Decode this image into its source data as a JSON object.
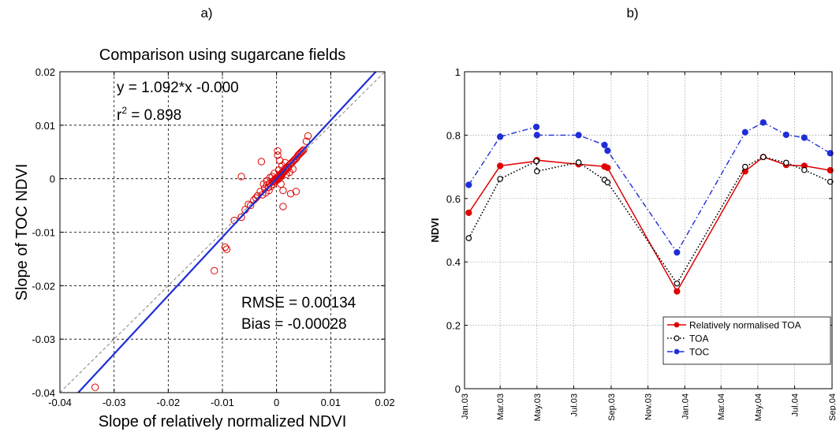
{
  "chart_data": [
    {
      "type": "scatter",
      "panel_label": "a)",
      "title": "Comparison using sugarcane fields",
      "xlabel": "Slope of relatively normalized NDVI",
      "ylabel": "Slope of TOC NDVI",
      "xlim": [
        -0.04,
        0.02
      ],
      "ylim": [
        -0.04,
        0.02
      ],
      "xticks": [
        -0.04,
        -0.03,
        -0.02,
        -0.01,
        0,
        0.01,
        0.02
      ],
      "yticks": [
        -0.04,
        -0.03,
        -0.02,
        -0.01,
        0,
        0.01,
        0.02
      ],
      "xtick_labels": [
        "-0.04",
        "-0.03",
        "-0.02",
        "-0.01",
        "0",
        "0.01",
        "0.02"
      ],
      "ytick_labels": [
        "-0.04",
        "-0.03",
        "-0.02",
        "-0.01",
        "0",
        "0.01",
        "0.02"
      ],
      "grid": true,
      "equation": "y = 1.092*x -0.000",
      "r2_prefix": "r",
      "r2_sup": "2",
      "r2_value": " = 0.898",
      "rmse_text": "RMSE = 0.00134",
      "bias_text": "Bias = -0.00028",
      "fit": {
        "slope": 1.092,
        "intercept": 0.0
      },
      "colors": {
        "points": "#e00000",
        "fit": "#1f2ed6",
        "identity": "#808080"
      },
      "points": [
        [
          -0.0335,
          -0.039
        ],
        [
          -0.0115,
          -0.0172
        ],
        [
          -0.0095,
          -0.0128
        ],
        [
          -0.0092,
          -0.0132
        ],
        [
          -0.0078,
          -0.0078
        ],
        [
          -0.0065,
          -0.0072
        ],
        [
          -0.0058,
          -0.0058
        ],
        [
          -0.0052,
          -0.0048
        ],
        [
          -0.0048,
          -0.005
        ],
        [
          -0.0042,
          -0.004
        ],
        [
          -0.0038,
          -0.0036
        ],
        [
          -0.0035,
          -0.0032
        ],
        [
          -0.003,
          -0.0024
        ],
        [
          -0.0026,
          -0.003
        ],
        [
          -0.0022,
          -0.0018
        ],
        [
          -0.002,
          -0.0026
        ],
        [
          -0.0018,
          -0.0012
        ],
        [
          -0.0015,
          -0.0016
        ],
        [
          -0.0012,
          -0.0008
        ],
        [
          -0.001,
          -0.0014
        ],
        [
          -0.0008,
          -0.0006
        ],
        [
          -0.0006,
          -0.001
        ],
        [
          -0.0005,
          -0.0004
        ],
        [
          -0.0004,
          -0.0002
        ],
        [
          -0.0003,
          -0.0006
        ],
        [
          -0.0002,
          0.0
        ],
        [
          -0.0001,
          -0.0003
        ],
        [
          0.0,
          -0.0001
        ],
        [
          0.0001,
          0.0002
        ],
        [
          0.0002,
          -0.0002
        ],
        [
          0.0003,
          0.0003
        ],
        [
          0.0004,
          0.0
        ],
        [
          0.0005,
          0.0005
        ],
        [
          0.0006,
          0.0002
        ],
        [
          0.0007,
          0.0008
        ],
        [
          0.0008,
          0.0006
        ],
        [
          0.0009,
          0.001
        ],
        [
          0.001,
          0.0007
        ],
        [
          0.0011,
          0.0012
        ],
        [
          0.0012,
          0.0011
        ],
        [
          0.0014,
          0.0014
        ],
        [
          0.0015,
          0.0018
        ],
        [
          0.0017,
          0.0016
        ],
        [
          0.0018,
          0.002
        ],
        [
          0.002,
          0.0022
        ],
        [
          0.0022,
          0.0021
        ],
        [
          0.0024,
          0.0026
        ],
        [
          0.0026,
          0.0028
        ],
        [
          0.0028,
          0.003
        ],
        [
          0.003,
          0.0032
        ],
        [
          0.0032,
          0.0034
        ],
        [
          0.0034,
          0.0036
        ],
        [
          0.0036,
          0.0038
        ],
        [
          0.0038,
          0.0041
        ],
        [
          0.004,
          0.0044
        ],
        [
          0.0042,
          0.0046
        ],
        [
          0.0044,
          0.0048
        ],
        [
          0.0046,
          0.005
        ],
        [
          0.0048,
          0.0052
        ],
        [
          0.005,
          0.0054
        ],
        [
          0.0055,
          0.007
        ],
        [
          0.0058,
          0.008
        ],
        [
          -0.0008,
          0.0004
        ],
        [
          -0.0012,
          0.0002
        ],
        [
          -0.0065,
          0.0004
        ],
        [
          -0.0028,
          0.0032
        ],
        [
          0.0018,
          0.0008
        ],
        [
          0.0024,
          0.0012
        ],
        [
          0.003,
          0.0018
        ],
        [
          -0.0004,
          0.001
        ],
        [
          0.0004,
          0.0016
        ],
        [
          0.001,
          0.0024
        ],
        [
          0.0012,
          -0.0022
        ],
        [
          0.0008,
          -0.001
        ],
        [
          0.0026,
          -0.0028
        ],
        [
          0.0036,
          -0.0024
        ],
        [
          0.0012,
          -0.0052
        ],
        [
          -0.0018,
          -0.0004
        ],
        [
          -0.0014,
          -0.0022
        ],
        [
          -0.0024,
          -0.001
        ],
        [
          0.0016,
          0.003
        ],
        [
          0.0006,
          0.0034
        ],
        [
          0.0002,
          0.0044
        ],
        [
          0.0002,
          0.0052
        ]
      ]
    },
    {
      "type": "line",
      "panel_label": "b)",
      "ylabel": "NDVI",
      "ylim": [
        0,
        1
      ],
      "yticks": [
        0,
        0.2,
        0.4,
        0.6,
        0.8,
        1
      ],
      "ytick_labels": [
        "0",
        "0.2",
        "0.4",
        "0.6",
        "0.8",
        "1"
      ],
      "xticks": [
        "2003-01-01",
        "2003-03-01",
        "2003-05-01",
        "2003-07-01",
        "2003-09-01",
        "2003-11-01",
        "2004-01-01",
        "2004-03-01",
        "2004-05-01",
        "2004-07-01",
        "2004-09-01"
      ],
      "xtick_labels": [
        "Jan.03",
        "Mar.03",
        "May.03",
        "Jul.03",
        "Sep.03",
        "Nov.03",
        "Jan.04",
        "Mar.04",
        "May.04",
        "Jul.04",
        "Sep.04"
      ],
      "grid": true,
      "legend_position": "bottom-right",
      "series": [
        {
          "name": "Relatively normalised TOA",
          "color": "#e00000",
          "style": "solid",
          "x": [
            "2003-01-08",
            "2003-03-01",
            "2003-04-30",
            "2003-05-01",
            "2003-07-09",
            "2003-08-21",
            "2003-08-26",
            "2003-12-19",
            "2004-04-10",
            "2004-05-10",
            "2004-06-17",
            "2004-07-17",
            "2004-08-29"
          ],
          "y": [
            0.555,
            0.703,
            0.718,
            0.721,
            0.708,
            0.701,
            0.697,
            0.307,
            0.686,
            0.731,
            0.706,
            0.703,
            0.689
          ]
        },
        {
          "name": "TOA",
          "color": "#000000",
          "style": "dotted",
          "x": [
            "2003-01-08",
            "2003-03-01",
            "2003-04-30",
            "2003-05-01",
            "2003-07-09",
            "2003-08-21",
            "2003-08-26",
            "2003-12-19",
            "2004-04-10",
            "2004-05-10",
            "2004-06-17",
            "2004-07-17",
            "2004-08-29"
          ],
          "y": [
            0.475,
            0.662,
            0.718,
            0.686,
            0.714,
            0.659,
            0.651,
            0.332,
            0.7,
            0.731,
            0.713,
            0.69,
            0.653
          ]
        },
        {
          "name": "TOC",
          "color": "#1f2ed6",
          "style": "dashdot",
          "x": [
            "2003-01-08",
            "2003-03-01",
            "2003-04-30",
            "2003-05-01",
            "2003-07-09",
            "2003-08-21",
            "2003-08-26",
            "2003-12-19",
            "2004-04-10",
            "2004-05-10",
            "2004-06-17",
            "2004-07-17",
            "2004-08-29"
          ],
          "y": [
            0.643,
            0.795,
            0.826,
            0.8,
            0.8,
            0.769,
            0.751,
            0.43,
            0.809,
            0.84,
            0.801,
            0.792,
            0.743
          ]
        }
      ]
    }
  ]
}
